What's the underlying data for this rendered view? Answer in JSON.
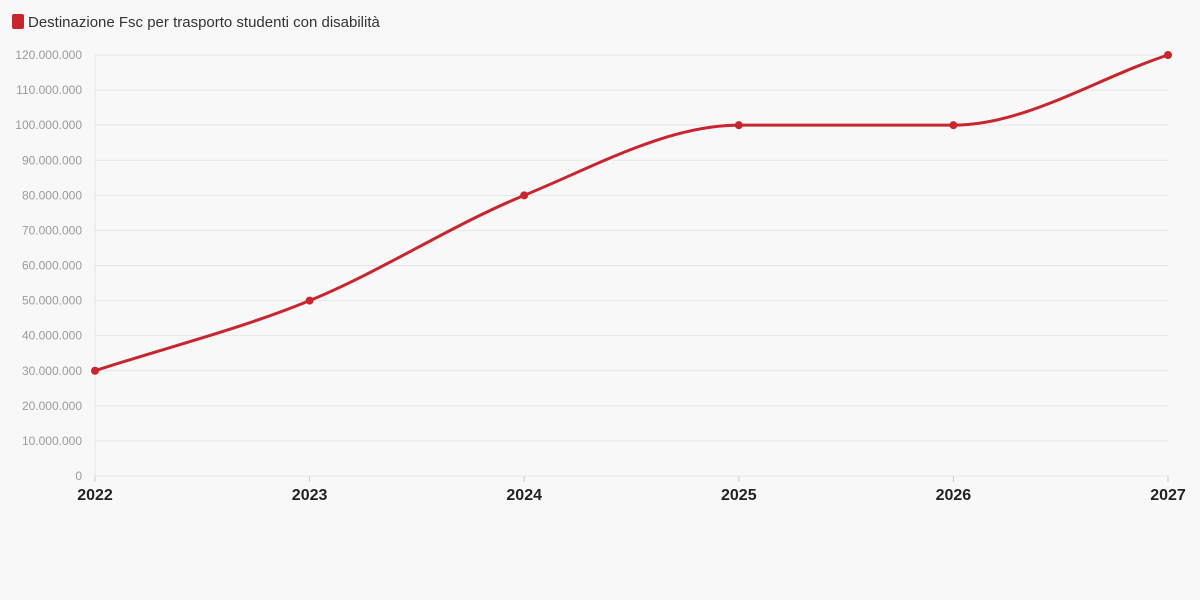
{
  "chart_data": {
    "type": "line",
    "title": "",
    "xlabel": "",
    "ylabel": "",
    "categories": [
      "2022",
      "2023",
      "2024",
      "2025",
      "2026",
      "2027"
    ],
    "series": [
      {
        "name": "Destinazione Fsc per trasporto studenti con disabilità",
        "color": "#c8252f",
        "values": [
          30000000,
          50000000,
          80000000,
          100000000,
          100000000,
          120000000
        ]
      }
    ],
    "ylim": [
      0,
      120000000
    ],
    "y_ticks": [
      {
        "value": 0,
        "label": "0"
      },
      {
        "value": 10000000,
        "label": "10.000.000"
      },
      {
        "value": 20000000,
        "label": "20.000.000"
      },
      {
        "value": 30000000,
        "label": "30.000.000"
      },
      {
        "value": 40000000,
        "label": "40.000.000"
      },
      {
        "value": 50000000,
        "label": "50.000.000"
      },
      {
        "value": 60000000,
        "label": "60.000.000"
      },
      {
        "value": 70000000,
        "label": "70.000.000"
      },
      {
        "value": 80000000,
        "label": "80.000.000"
      },
      {
        "value": 90000000,
        "label": "90.000.000"
      },
      {
        "value": 100000000,
        "label": "100.000.000"
      },
      {
        "value": 110000000,
        "label": "110.000.000"
      },
      {
        "value": 120000000,
        "label": "120.000.000"
      }
    ],
    "grid": true,
    "legend_position": "top-left",
    "colors": {
      "background": "#f8f8f8",
      "grid": "#e6e6e6",
      "tick_y": "#9a9a9a",
      "tick_x": "#222222"
    }
  }
}
